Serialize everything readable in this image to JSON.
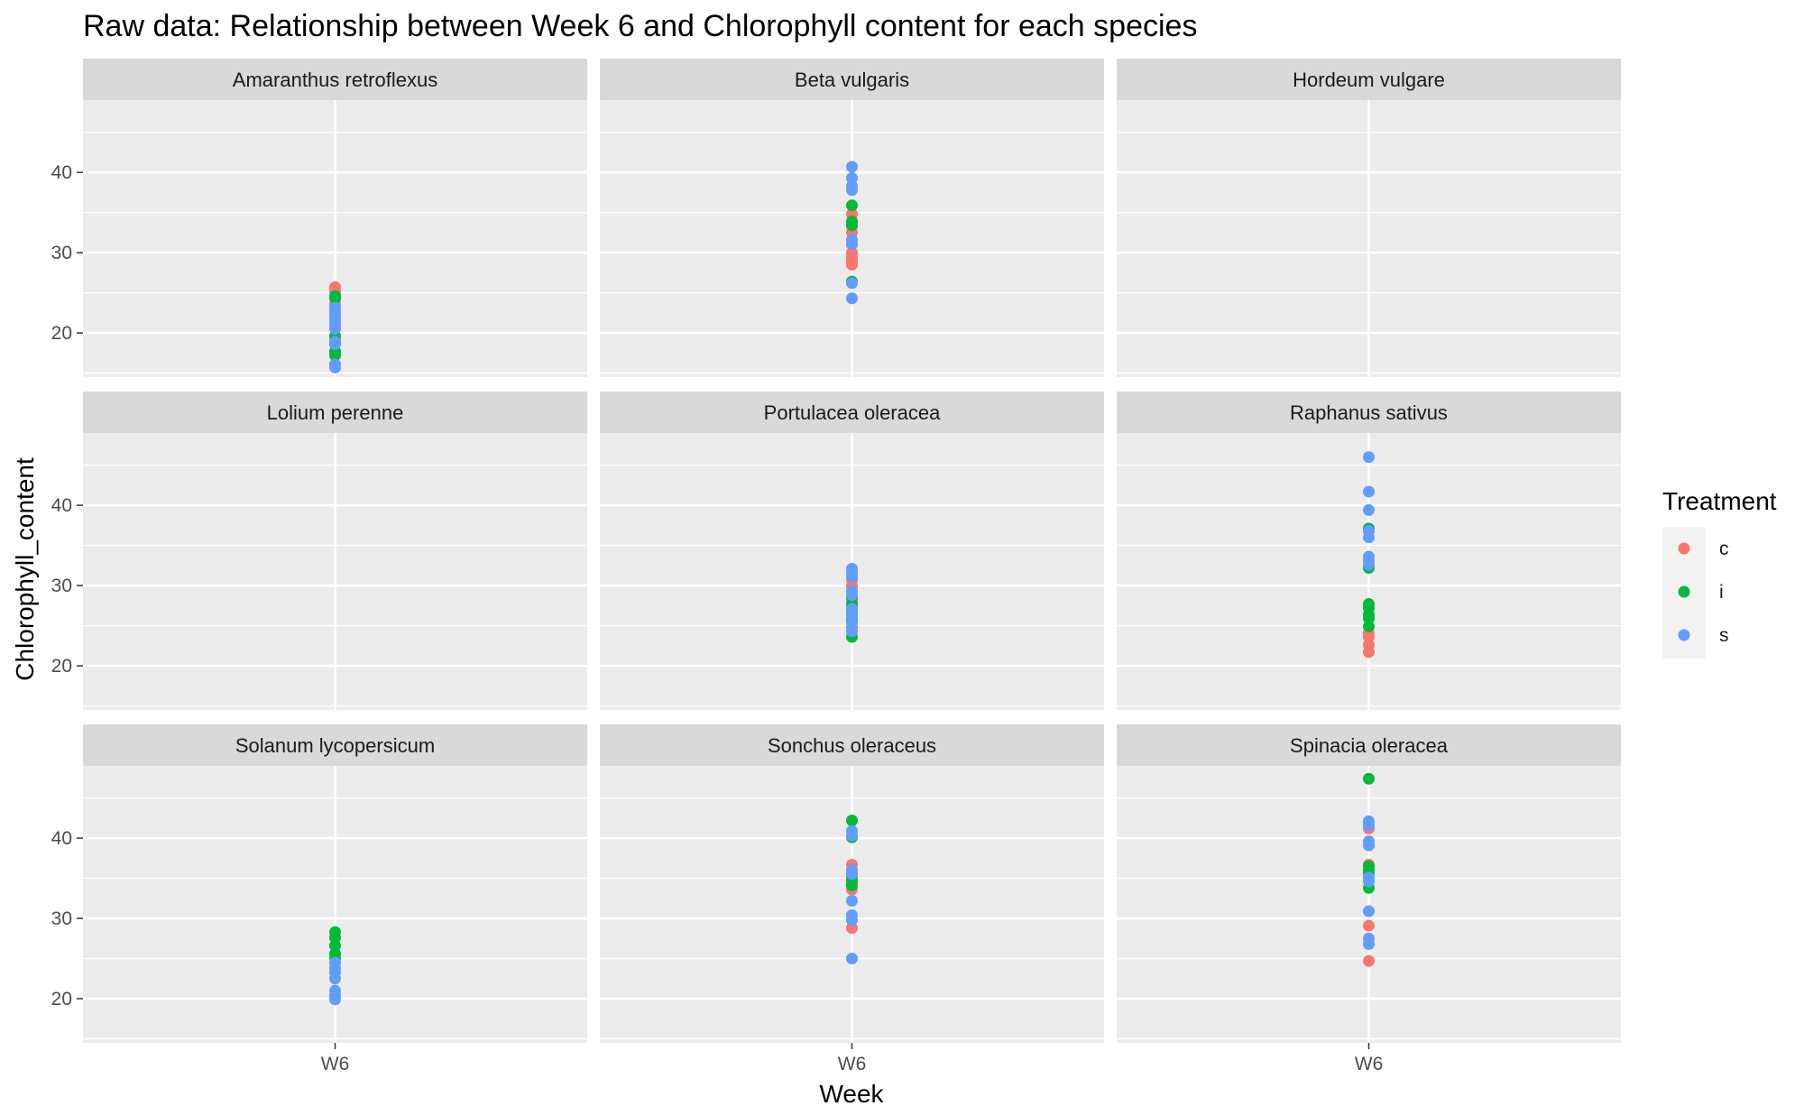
{
  "chart_data": {
    "type": "scatter",
    "title": "Raw data: Relationship between Week 6 and Chlorophyll content for each species",
    "xlabel": "Week",
    "ylabel": "Chlorophyll_content",
    "x_categories": [
      "W6"
    ],
    "y_ticks": [
      20,
      30,
      40
    ],
    "ylim": [
      14.5,
      49.0
    ],
    "grid": true,
    "legend": {
      "title": "Treatment",
      "placement": "right",
      "entries": [
        {
          "label": "c",
          "color": "#F8766D"
        },
        {
          "label": "i",
          "color": "#00BA38"
        },
        {
          "label": "s",
          "color": "#619CFF"
        }
      ]
    },
    "facets": [
      {
        "species": "Amaranthus retroflexus",
        "points": {
          "c": [
            25.7,
            25.2,
            23.6,
            22.3,
            21.0,
            19.2
          ],
          "i": [
            24.6,
            24.3,
            19.6,
            17.7,
            17.2,
            18.6
          ],
          "s": [
            23.1,
            22.8,
            22.4,
            22.0,
            21.5,
            21.1,
            20.5,
            18.9,
            18.6,
            16.1,
            15.7
          ]
        }
      },
      {
        "species": "Beta vulgaris",
        "points": {
          "c": [
            34.8,
            33.3,
            32.5,
            31.0,
            30.0,
            29.5,
            29.0,
            28.5
          ],
          "i": [
            35.9,
            33.9,
            33.4,
            26.4
          ],
          "s": [
            40.7,
            39.3,
            38.3,
            37.8,
            31.6,
            31.1,
            26.2,
            24.3
          ]
        }
      },
      {
        "species": "Hordeum vulgare",
        "points": {
          "c": [],
          "i": [],
          "s": []
        }
      },
      {
        "species": "Lolium perenne",
        "points": {
          "c": [],
          "i": [],
          "s": []
        }
      },
      {
        "species": "Portulacea oleracea",
        "points": {
          "c": [
            30.7,
            29.9,
            28.2,
            27.4
          ],
          "i": [
            28.5,
            27.7,
            26.9,
            26.3,
            25.7,
            23.6
          ],
          "s": [
            32.1,
            31.6,
            31.1,
            29.3,
            28.8,
            27.1,
            26.1,
            25.3,
            24.8,
            24.3
          ]
        }
      },
      {
        "species": "Raphanus sativus",
        "points": {
          "c": [
            24.1,
            23.6,
            22.6,
            21.7
          ],
          "i": [
            37.1,
            32.2,
            27.7,
            27.2,
            26.4,
            25.9,
            24.9
          ],
          "s": [
            46.0,
            41.7,
            39.4,
            36.8,
            36.0,
            33.6,
            33.1,
            32.6
          ]
        }
      },
      {
        "species": "Solanum lycopersicum",
        "points": {
          "c": [],
          "i": [
            28.3,
            27.6,
            26.6,
            25.6,
            25.0
          ],
          "s": [
            24.5,
            23.8,
            23.3,
            22.5,
            21.0,
            20.4,
            19.9
          ]
        }
      },
      {
        "species": "Sonchus oleraceus",
        "points": {
          "c": [
            36.7,
            35.3,
            34.6,
            33.6,
            28.8
          ],
          "i": [
            42.2,
            40.1,
            35.1,
            34.6,
            34.1
          ],
          "s": [
            40.9,
            40.3,
            36.0,
            35.5,
            32.2,
            30.4,
            29.8,
            25.0
          ]
        }
      },
      {
        "species": "Spinacia oleracea",
        "points": {
          "c": [
            41.2,
            36.7,
            29.1,
            24.7
          ],
          "i": [
            47.4,
            36.5,
            36.0,
            35.6,
            33.8
          ],
          "s": [
            42.1,
            41.6,
            39.6,
            39.1,
            35.1,
            34.6,
            30.9,
            27.5,
            26.8
          ]
        }
      }
    ]
  }
}
